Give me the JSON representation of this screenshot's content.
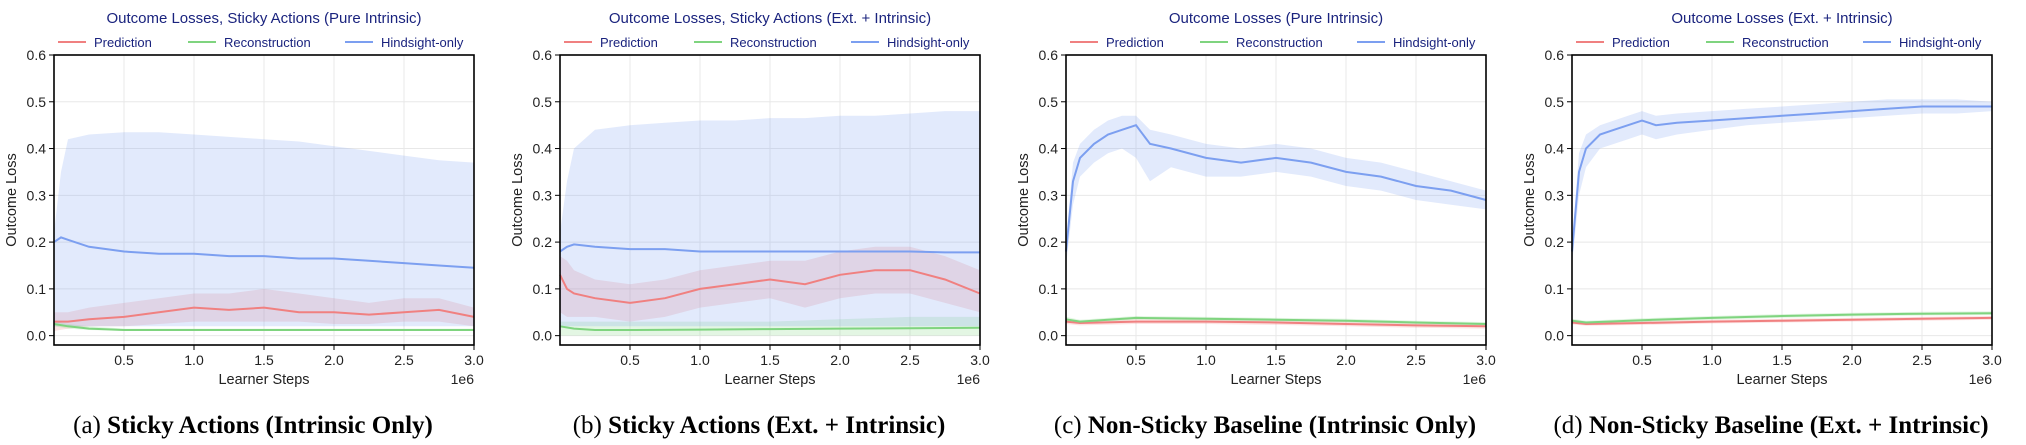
{
  "chart_data": [
    {
      "type": "line",
      "title": "Outcome Losses, Sticky Actions (Pure Intrinsic)",
      "caption_label": "(a)",
      "caption_text": "Sticky Actions (Intrinsic Only)",
      "xlabel": "Learner Steps",
      "ylabel": "Outcome Loss",
      "x_multiplier": "1e6",
      "xlim": [
        0,
        3.0
      ],
      "ylim": [
        -0.02,
        0.6
      ],
      "xticks": [
        "0.5",
        "1.0",
        "1.5",
        "2.0",
        "2.5",
        "3.0"
      ],
      "yticks": [
        "0.0",
        "0.1",
        "0.2",
        "0.3",
        "0.4",
        "0.5",
        "0.6"
      ],
      "grid": true,
      "legend": "top",
      "series": [
        {
          "name": "Prediction",
          "color": "#f08080",
          "x": [
            0.0,
            0.1,
            0.25,
            0.5,
            0.75,
            1.0,
            1.25,
            1.5,
            1.75,
            2.0,
            2.25,
            2.5,
            2.75,
            3.0
          ],
          "y": [
            0.03,
            0.03,
            0.035,
            0.04,
            0.05,
            0.06,
            0.055,
            0.06,
            0.05,
            0.05,
            0.045,
            0.05,
            0.055,
            0.04
          ],
          "lower": [
            0.01,
            0.015,
            0.02,
            0.02,
            0.025,
            0.03,
            0.03,
            0.03,
            0.03,
            0.025,
            0.025,
            0.03,
            0.03,
            0.02
          ],
          "upper": [
            0.05,
            0.05,
            0.06,
            0.07,
            0.08,
            0.09,
            0.09,
            0.1,
            0.09,
            0.08,
            0.07,
            0.08,
            0.08,
            0.06
          ]
        },
        {
          "name": "Reconstruction",
          "color": "#7fd47f",
          "x": [
            0.0,
            0.1,
            0.25,
            0.5,
            1.0,
            1.5,
            2.0,
            2.5,
            3.0
          ],
          "y": [
            0.025,
            0.02,
            0.015,
            0.012,
            0.012,
            0.012,
            0.012,
            0.012,
            0.012
          ],
          "lower": [
            0.02,
            0.015,
            0.012,
            0.01,
            0.01,
            0.01,
            0.01,
            0.01,
            0.01
          ],
          "upper": [
            0.03,
            0.025,
            0.02,
            0.015,
            0.015,
            0.015,
            0.015,
            0.015,
            0.015
          ]
        },
        {
          "name": "Hindsight-only",
          "color": "#7c9ff0",
          "x": [
            0.0,
            0.05,
            0.1,
            0.25,
            0.5,
            0.75,
            1.0,
            1.25,
            1.5,
            1.75,
            2.0,
            2.25,
            2.5,
            2.75,
            3.0
          ],
          "y": [
            0.2,
            0.21,
            0.205,
            0.19,
            0.18,
            0.175,
            0.175,
            0.17,
            0.17,
            0.165,
            0.165,
            0.16,
            0.155,
            0.15,
            0.145
          ],
          "lower": [
            0.02,
            0.02,
            0.02,
            0.02,
            0.02,
            0.02,
            0.02,
            0.02,
            0.02,
            0.02,
            0.02,
            0.02,
            0.02,
            0.02,
            0.02
          ],
          "upper": [
            0.22,
            0.35,
            0.42,
            0.43,
            0.435,
            0.435,
            0.43,
            0.425,
            0.42,
            0.415,
            0.405,
            0.395,
            0.385,
            0.375,
            0.37
          ]
        }
      ]
    },
    {
      "type": "line",
      "title": "Outcome Losses, Sticky Actions (Ext. + Intrinsic)",
      "caption_label": "(b)",
      "caption_text": "Sticky Actions (Ext. + Intrinsic)",
      "xlabel": "Learner Steps",
      "ylabel": "Outcome Loss",
      "x_multiplier": "1e6",
      "xlim": [
        0,
        3.0
      ],
      "ylim": [
        -0.02,
        0.6
      ],
      "xticks": [
        "0.5",
        "1.0",
        "1.5",
        "2.0",
        "2.5",
        "3.0"
      ],
      "yticks": [
        "0.0",
        "0.1",
        "0.2",
        "0.3",
        "0.4",
        "0.5",
        "0.6"
      ],
      "grid": true,
      "legend": "top",
      "series": [
        {
          "name": "Prediction",
          "color": "#f08080",
          "x": [
            0.0,
            0.05,
            0.1,
            0.25,
            0.5,
            0.75,
            1.0,
            1.25,
            1.5,
            1.75,
            2.0,
            2.25,
            2.5,
            2.75,
            3.0
          ],
          "y": [
            0.13,
            0.1,
            0.09,
            0.08,
            0.07,
            0.08,
            0.1,
            0.11,
            0.12,
            0.11,
            0.13,
            0.14,
            0.14,
            0.12,
            0.09
          ],
          "lower": [
            0.05,
            0.04,
            0.04,
            0.04,
            0.03,
            0.04,
            0.06,
            0.07,
            0.08,
            0.06,
            0.08,
            0.09,
            0.09,
            0.07,
            0.05
          ],
          "upper": [
            0.17,
            0.16,
            0.14,
            0.12,
            0.11,
            0.12,
            0.14,
            0.15,
            0.16,
            0.16,
            0.18,
            0.19,
            0.19,
            0.17,
            0.14
          ]
        },
        {
          "name": "Reconstruction",
          "color": "#7fd47f",
          "x": [
            0.0,
            0.1,
            0.25,
            0.5,
            1.0,
            1.5,
            2.0,
            2.5,
            3.0
          ],
          "y": [
            0.02,
            0.015,
            0.012,
            0.012,
            0.013,
            0.014,
            0.015,
            0.016,
            0.017
          ],
          "lower": [
            0.0,
            0.0,
            0.0,
            0.0,
            0.0,
            0.0,
            0.0,
            0.0,
            0.0
          ],
          "upper": [
            0.03,
            0.03,
            0.03,
            0.03,
            0.03,
            0.03,
            0.035,
            0.04,
            0.04
          ]
        },
        {
          "name": "Hindsight-only",
          "color": "#7c9ff0",
          "x": [
            0.0,
            0.05,
            0.1,
            0.25,
            0.5,
            0.75,
            1.0,
            1.25,
            1.5,
            1.75,
            2.0,
            2.25,
            2.5,
            2.75,
            3.0
          ],
          "y": [
            0.18,
            0.19,
            0.195,
            0.19,
            0.185,
            0.185,
            0.18,
            0.18,
            0.18,
            0.18,
            0.18,
            0.18,
            0.18,
            0.178,
            0.178
          ],
          "lower": [
            0.02,
            0.02,
            0.02,
            0.02,
            0.02,
            0.02,
            0.02,
            0.02,
            0.02,
            0.02,
            0.02,
            0.02,
            0.02,
            0.02,
            0.02
          ],
          "upper": [
            0.22,
            0.33,
            0.4,
            0.44,
            0.45,
            0.455,
            0.46,
            0.46,
            0.465,
            0.465,
            0.47,
            0.47,
            0.475,
            0.48,
            0.48
          ]
        }
      ]
    },
    {
      "type": "line",
      "title": "Outcome Losses (Pure Intrinsic)",
      "caption_label": "(c)",
      "caption_text": "Non-Sticky Baseline (Intrinsic Only)",
      "xlabel": "Learner Steps",
      "ylabel": "Outcome Loss",
      "x_multiplier": "1e6",
      "xlim": [
        0,
        3.0
      ],
      "ylim": [
        -0.02,
        0.6
      ],
      "xticks": [
        "0.5",
        "1.0",
        "1.5",
        "2.0",
        "2.5",
        "3.0"
      ],
      "yticks": [
        "0.0",
        "0.1",
        "0.2",
        "0.3",
        "0.4",
        "0.5",
        "0.6"
      ],
      "grid": true,
      "legend": "top",
      "series": [
        {
          "name": "Prediction",
          "color": "#f08080",
          "x": [
            0.0,
            0.1,
            0.5,
            1.0,
            1.5,
            2.0,
            2.5,
            3.0
          ],
          "y": [
            0.03,
            0.027,
            0.03,
            0.03,
            0.028,
            0.025,
            0.022,
            0.02
          ],
          "lower": [
            0.025,
            0.022,
            0.025,
            0.025,
            0.023,
            0.02,
            0.017,
            0.015
          ],
          "upper": [
            0.035,
            0.032,
            0.035,
            0.035,
            0.033,
            0.03,
            0.027,
            0.025
          ]
        },
        {
          "name": "Reconstruction",
          "color": "#7fd47f",
          "x": [
            0.0,
            0.1,
            0.5,
            1.0,
            1.5,
            2.0,
            2.5,
            3.0
          ],
          "y": [
            0.035,
            0.03,
            0.038,
            0.036,
            0.034,
            0.032,
            0.028,
            0.025
          ],
          "lower": [
            0.03,
            0.026,
            0.034,
            0.032,
            0.03,
            0.028,
            0.024,
            0.021
          ],
          "upper": [
            0.04,
            0.034,
            0.042,
            0.04,
            0.038,
            0.036,
            0.032,
            0.029
          ]
        },
        {
          "name": "Hindsight-only",
          "color": "#7c9ff0",
          "x": [
            0.0,
            0.05,
            0.1,
            0.2,
            0.3,
            0.4,
            0.5,
            0.6,
            0.75,
            1.0,
            1.25,
            1.5,
            1.75,
            2.0,
            2.25,
            2.5,
            2.75,
            3.0
          ],
          "y": [
            0.18,
            0.33,
            0.38,
            0.41,
            0.43,
            0.44,
            0.45,
            0.41,
            0.4,
            0.38,
            0.37,
            0.38,
            0.37,
            0.35,
            0.34,
            0.32,
            0.31,
            0.29
          ],
          "lower": [
            0.15,
            0.28,
            0.34,
            0.37,
            0.39,
            0.4,
            0.38,
            0.33,
            0.36,
            0.34,
            0.34,
            0.35,
            0.34,
            0.32,
            0.31,
            0.29,
            0.28,
            0.27
          ],
          "upper": [
            0.2,
            0.37,
            0.41,
            0.44,
            0.46,
            0.47,
            0.47,
            0.44,
            0.43,
            0.41,
            0.4,
            0.41,
            0.4,
            0.38,
            0.37,
            0.35,
            0.33,
            0.31
          ]
        }
      ]
    },
    {
      "type": "line",
      "title": "Outcome Losses (Ext. + Intrinsic)",
      "caption_label": "(d)",
      "caption_text": "Non-Sticky Baseline (Ext. + Intrinsic)",
      "xlabel": "Learner Steps",
      "ylabel": "Outcome Loss",
      "x_multiplier": "1e6",
      "xlim": [
        0,
        3.0
      ],
      "ylim": [
        -0.02,
        0.6
      ],
      "xticks": [
        "0.5",
        "1.0",
        "1.5",
        "2.0",
        "2.5",
        "3.0"
      ],
      "yticks": [
        "0.0",
        "0.1",
        "0.2",
        "0.3",
        "0.4",
        "0.5",
        "0.6"
      ],
      "grid": true,
      "legend": "top",
      "series": [
        {
          "name": "Prediction",
          "color": "#f08080",
          "x": [
            0.0,
            0.1,
            0.5,
            1.0,
            1.5,
            2.0,
            2.5,
            3.0
          ],
          "y": [
            0.028,
            0.025,
            0.027,
            0.03,
            0.032,
            0.034,
            0.036,
            0.038
          ],
          "lower": [
            0.024,
            0.021,
            0.023,
            0.026,
            0.028,
            0.03,
            0.032,
            0.034
          ],
          "upper": [
            0.032,
            0.029,
            0.031,
            0.034,
            0.036,
            0.038,
            0.04,
            0.042
          ]
        },
        {
          "name": "Reconstruction",
          "color": "#7fd47f",
          "x": [
            0.0,
            0.1,
            0.5,
            1.0,
            1.5,
            2.0,
            2.5,
            3.0
          ],
          "y": [
            0.032,
            0.028,
            0.033,
            0.038,
            0.042,
            0.045,
            0.047,
            0.048
          ],
          "lower": [
            0.028,
            0.024,
            0.029,
            0.034,
            0.038,
            0.041,
            0.043,
            0.044
          ],
          "upper": [
            0.036,
            0.032,
            0.037,
            0.042,
            0.046,
            0.049,
            0.051,
            0.052
          ]
        },
        {
          "name": "Hindsight-only",
          "color": "#7c9ff0",
          "x": [
            0.0,
            0.05,
            0.1,
            0.2,
            0.3,
            0.4,
            0.5,
            0.6,
            0.75,
            1.0,
            1.25,
            1.5,
            1.75,
            2.0,
            2.25,
            2.5,
            2.75,
            3.0
          ],
          "y": [
            0.18,
            0.35,
            0.4,
            0.43,
            0.44,
            0.45,
            0.46,
            0.45,
            0.455,
            0.46,
            0.465,
            0.47,
            0.475,
            0.48,
            0.485,
            0.49,
            0.49,
            0.49
          ],
          "lower": [
            0.15,
            0.3,
            0.36,
            0.4,
            0.41,
            0.42,
            0.43,
            0.42,
            0.43,
            0.44,
            0.45,
            0.455,
            0.46,
            0.465,
            0.47,
            0.475,
            0.475,
            0.48
          ],
          "upper": [
            0.2,
            0.39,
            0.43,
            0.45,
            0.46,
            0.47,
            0.48,
            0.47,
            0.475,
            0.48,
            0.485,
            0.49,
            0.495,
            0.5,
            0.505,
            0.505,
            0.505,
            0.5
          ]
        }
      ]
    }
  ]
}
